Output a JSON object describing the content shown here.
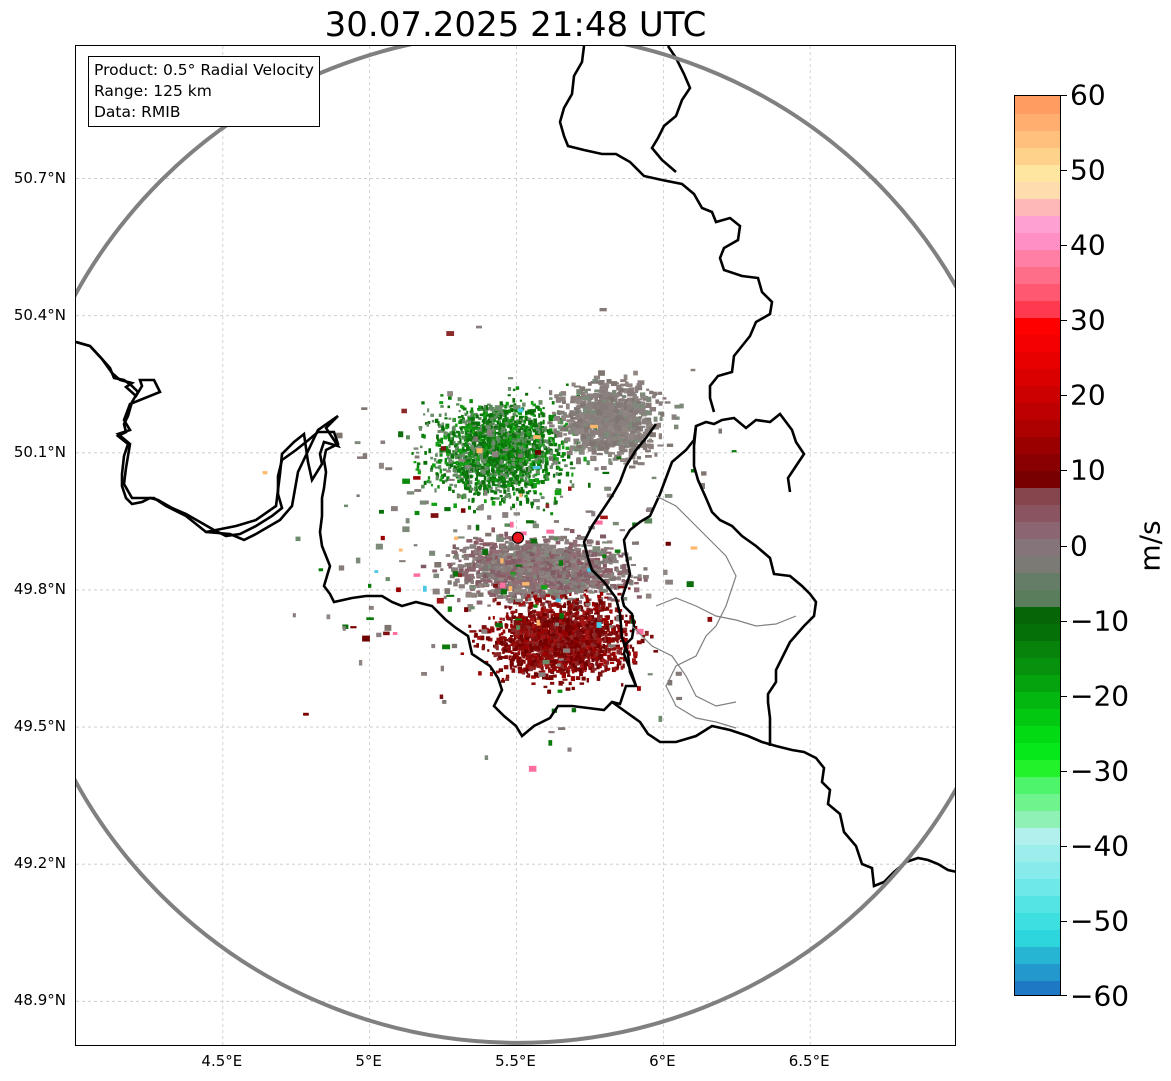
{
  "title": "30.07.2025 21:48 UTC",
  "info": {
    "product": "Product: 0.5° Radial Velocity",
    "range": "Range: 125 km",
    "data": "Data: RMIB"
  },
  "lat_labels": [
    "50.7°N",
    "50.4°N",
    "50.1°N",
    "49.8°N",
    "49.5°N",
    "49.2°N",
    "48.9°N"
  ],
  "lat_values": [
    50.7,
    50.4,
    50.1,
    49.8,
    49.5,
    49.2,
    48.9
  ],
  "lon_labels": [
    "4.5°E",
    "5°E",
    "5.5°E",
    "6°E",
    "6.5°E"
  ],
  "lon_values": [
    4.5,
    5.0,
    5.5,
    6.0,
    6.5
  ],
  "map_extent": {
    "lon_min": 4.0,
    "lon_max": 7.0,
    "lat_min": 48.8,
    "lat_max": 50.99
  },
  "radar_site": {
    "lon": 5.505,
    "lat": 49.914,
    "color": "#e8141e"
  },
  "range_ring_color": "#808080",
  "colorbar": {
    "unit": "m/s",
    "min": -60,
    "max": 60,
    "tick_values": [
      60,
      50,
      40,
      30,
      20,
      10,
      0,
      -10,
      -20,
      -30,
      -40,
      -50,
      -60
    ],
    "tick_labels": [
      "60",
      "50",
      "40",
      "30",
      "20",
      "10",
      "0",
      "−10",
      "−20",
      "−30",
      "−40",
      "−50",
      "−60"
    ],
    "colors_bottom_to_top": [
      "#1f78c4",
      "#2398cc",
      "#26b6d4",
      "#2cd6dc",
      "#3edfe0",
      "#55e4e4",
      "#6ee8e8",
      "#86ebea",
      "#9ceeec",
      "#b2f0ee",
      "#8ff2b4",
      "#6ff38c",
      "#4ef46a",
      "#22f22a",
      "#06e81a",
      "#02da14",
      "#02c812",
      "#03b610",
      "#05a40e",
      "#06920c",
      "#07820a",
      "#067008",
      "#066606",
      "#5a7e5c",
      "#657d66",
      "#7b7a75",
      "#857479",
      "#8b6672",
      "#8a5560",
      "#85454d",
      "#780000",
      "#8a0000",
      "#9b0000",
      "#ad0000",
      "#bd0000",
      "#cc0000",
      "#da0000",
      "#e80000",
      "#f40000",
      "#ff0000",
      "#ff3a4e",
      "#ff5870",
      "#ff6e88",
      "#ff80a4",
      "#ff8fc4",
      "#ffa0d2",
      "#ffb8b8",
      "#ffdcae",
      "#ffe6a0",
      "#ffd28c",
      "#ffc07e",
      "#ffae70",
      "#ff9c62"
    ]
  }
}
